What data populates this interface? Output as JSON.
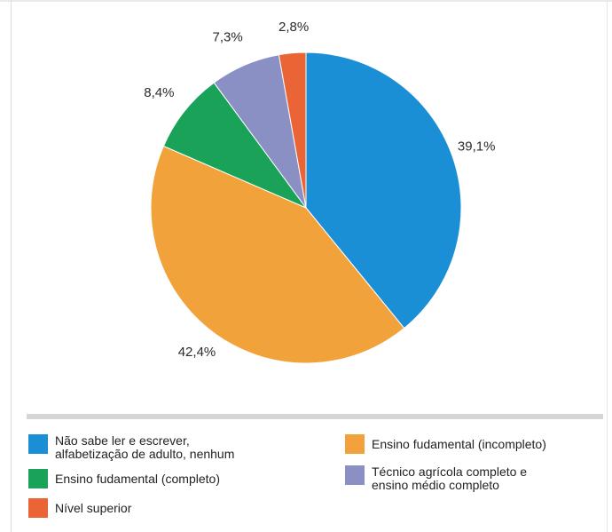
{
  "chart_data": {
    "type": "pie",
    "slices": [
      {
        "label": "Não sabe ler e escrever,\nalfabetização de adulto, nenhum",
        "value": 39.1,
        "value_label": "39,1%",
        "color": "#1a8fd6"
      },
      {
        "label": "Ensino fudamental (incompleto)",
        "value": 42.4,
        "value_label": "42,4%",
        "color": "#f2a23a"
      },
      {
        "label": "Ensino fudamental (completo)",
        "value": 8.4,
        "value_label": "8,4%",
        "color": "#1aa358"
      },
      {
        "label": "Técnico agrícola completo e\nensino médio completo",
        "value": 7.3,
        "value_label": "7,3%",
        "color": "#8a8fc4"
      },
      {
        "label": "Nível superior",
        "value": 2.8,
        "value_label": "2,8%",
        "color": "#ea6435"
      }
    ],
    "start_angle": "12 o'clock",
    "direction": "clockwise",
    "legend_position": "bottom"
  }
}
